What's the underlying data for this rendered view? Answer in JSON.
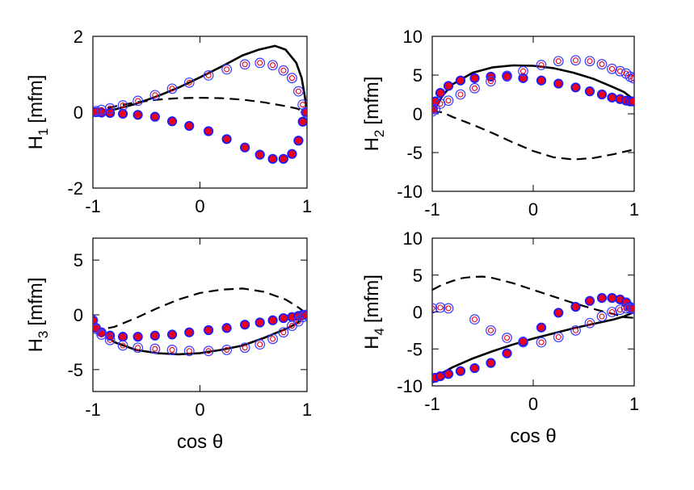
{
  "colors": {
    "filled_fill": "#e8001c",
    "filled_ring": "#1a1aff",
    "open_outer": "#3b3bff",
    "open_inner": "#e8001c",
    "line": "#000000"
  },
  "chart_data": [
    {
      "id": "h1",
      "type": "line",
      "ylabel_main": "H",
      "ylabel_sub": "1",
      "ylabel_unit": "[mfm]",
      "xlabel": "",
      "xlim": [
        -1,
        1
      ],
      "ylim": [
        -2,
        2
      ],
      "xticks": [
        "-1",
        "0",
        "1"
      ],
      "yticks": [
        "2",
        "0",
        "-2"
      ],
      "xtick_vals": [
        -1,
        0,
        1
      ],
      "ytick_vals": [
        2,
        0,
        -2
      ],
      "series": [
        {
          "name": "solid",
          "style": "solid",
          "x": [
            -1,
            -0.8,
            -0.6,
            -0.4,
            -0.2,
            0,
            0.2,
            0.4,
            0.55,
            0.7,
            0.8,
            0.9,
            0.95,
            0.98,
            1
          ],
          "y": [
            0,
            0.07,
            0.22,
            0.42,
            0.65,
            0.92,
            1.2,
            1.5,
            1.65,
            1.75,
            1.65,
            1.3,
            0.9,
            0.4,
            0
          ]
        },
        {
          "name": "dashed",
          "style": "dashed",
          "x": [
            -1,
            -0.8,
            -0.6,
            -0.4,
            -0.2,
            0,
            0.2,
            0.4,
            0.6,
            0.8,
            0.9,
            1
          ],
          "y": [
            0,
            0.15,
            0.26,
            0.33,
            0.37,
            0.38,
            0.37,
            0.33,
            0.26,
            0.16,
            0.1,
            0
          ]
        },
        {
          "name": "filled",
          "style": "filled",
          "x": [
            -1,
            -0.97,
            -0.92,
            -0.84,
            -0.72,
            -0.58,
            -0.42,
            -0.26,
            -0.1,
            0.08,
            0.25,
            0.42,
            0.56,
            0.68,
            0.78,
            0.86,
            0.92,
            0.96,
            0.99
          ],
          "y": [
            0,
            0,
            -0.01,
            -0.02,
            -0.04,
            -0.07,
            -0.12,
            -0.24,
            -0.36,
            -0.5,
            -0.71,
            -0.93,
            -1.12,
            -1.23,
            -1.23,
            -1.1,
            -0.75,
            -0.25,
            0
          ]
        },
        {
          "name": "open",
          "style": "open",
          "x": [
            -1,
            -0.97,
            -0.92,
            -0.84,
            -0.72,
            -0.58,
            -0.42,
            -0.26,
            -0.1,
            0.08,
            0.25,
            0.42,
            0.56,
            0.68,
            0.78,
            0.86,
            0.92,
            0.96,
            0.99
          ],
          "y": [
            0,
            0.03,
            0.06,
            0.1,
            0.18,
            0.3,
            0.45,
            0.62,
            0.78,
            0.97,
            1.13,
            1.26,
            1.3,
            1.24,
            1.1,
            0.9,
            0.55,
            0.2,
            0
          ]
        }
      ]
    },
    {
      "id": "h2",
      "type": "line",
      "ylabel_main": "H",
      "ylabel_sub": "2",
      "ylabel_unit": "[mfm]",
      "xlabel": "",
      "xlim": [
        -1,
        1
      ],
      "ylim": [
        -10,
        10
      ],
      "xticks": [
        "-1",
        "0",
        "1"
      ],
      "yticks": [
        "10",
        "5",
        "0",
        "-5",
        "-10"
      ],
      "xtick_vals": [
        -1,
        0,
        1
      ],
      "ytick_vals": [
        10,
        5,
        0,
        -5,
        -10
      ],
      "series": [
        {
          "name": "solid",
          "style": "solid",
          "x": [
            -1,
            -0.9,
            -0.8,
            -0.6,
            -0.4,
            -0.2,
            0,
            0.2,
            0.4,
            0.6,
            0.8,
            0.9,
            1
          ],
          "y": [
            0,
            2.3,
            3.8,
            5.3,
            6.0,
            6.25,
            6.2,
            5.9,
            5.3,
            4.5,
            3.4,
            2.8,
            1.8
          ]
        },
        {
          "name": "dashed",
          "style": "dashed",
          "x": [
            -1,
            -0.9,
            -0.8,
            -0.6,
            -0.4,
            -0.2,
            0,
            0.2,
            0.4,
            0.6,
            0.8,
            0.9,
            1
          ],
          "y": [
            0.3,
            0.2,
            -0.4,
            -1.4,
            -2.5,
            -3.7,
            -4.8,
            -5.6,
            -5.9,
            -5.7,
            -5.2,
            -4.9,
            -4.6
          ]
        },
        {
          "name": "filled",
          "style": "filled",
          "x": [
            -1,
            -0.97,
            -0.92,
            -0.84,
            -0.72,
            -0.58,
            -0.42,
            -0.26,
            -0.1,
            0.08,
            0.25,
            0.42,
            0.56,
            0.68,
            0.78,
            0.86,
            0.92,
            0.96,
            0.99
          ],
          "y": [
            0.6,
            1.6,
            2.7,
            3.6,
            4.3,
            4.6,
            4.8,
            4.8,
            4.6,
            4.3,
            3.9,
            3.4,
            2.9,
            2.5,
            2.1,
            1.9,
            1.7,
            1.6,
            1.6
          ]
        },
        {
          "name": "open",
          "style": "open",
          "x": [
            -1,
            -0.97,
            -0.92,
            -0.84,
            -0.72,
            -0.58,
            -0.42,
            -0.26,
            -0.1,
            0.08,
            0.25,
            0.42,
            0.56,
            0.68,
            0.78,
            0.86,
            0.92,
            0.96,
            0.99
          ],
          "y": [
            0.3,
            0.6,
            1.3,
            1.7,
            2.5,
            3.3,
            4.2,
            4.9,
            5.5,
            6.3,
            6.8,
            6.9,
            6.8,
            6.4,
            5.8,
            5.5,
            5.2,
            4.8,
            4.6
          ]
        }
      ]
    },
    {
      "id": "h3",
      "type": "line",
      "ylabel_main": "H",
      "ylabel_sub": "3",
      "ylabel_unit": "[mfm]",
      "xlabel": "cos θ",
      "xlim": [
        -1,
        1
      ],
      "ylim": [
        -7,
        7
      ],
      "xticks": [
        "-1",
        "0",
        "1"
      ],
      "yticks": [
        "5",
        "0",
        "-5"
      ],
      "xtick_vals": [
        -1,
        0,
        1
      ],
      "ytick_vals": [
        5,
        0,
        -5
      ],
      "series": [
        {
          "name": "solid",
          "style": "solid",
          "x": [
            -1,
            -0.9,
            -0.8,
            -0.6,
            -0.4,
            -0.2,
            0,
            0.2,
            0.4,
            0.6,
            0.8,
            0.9,
            1
          ],
          "y": [
            -0.5,
            -1.6,
            -2.5,
            -3.2,
            -3.5,
            -3.6,
            -3.5,
            -3.2,
            -2.8,
            -2.1,
            -1.3,
            -0.8,
            0
          ]
        },
        {
          "name": "dashed",
          "style": "dashed",
          "x": [
            -1,
            -0.9,
            -0.8,
            -0.6,
            -0.4,
            -0.2,
            0,
            0.2,
            0.4,
            0.6,
            0.8,
            0.9,
            1
          ],
          "y": [
            -1.2,
            -1.3,
            -1.1,
            -0.3,
            0.6,
            1.4,
            2.0,
            2.3,
            2.4,
            2.1,
            1.4,
            0.8,
            0.1
          ]
        },
        {
          "name": "filled",
          "style": "filled",
          "x": [
            -1,
            -0.97,
            -0.92,
            -0.84,
            -0.72,
            -0.58,
            -0.42,
            -0.26,
            -0.1,
            0.08,
            0.25,
            0.42,
            0.56,
            0.68,
            0.78,
            0.86,
            0.92,
            0.96,
            0.99
          ],
          "y": [
            -0.5,
            -1.2,
            -1.6,
            -1.9,
            -2.0,
            -2.0,
            -1.9,
            -1.8,
            -1.6,
            -1.4,
            -1.2,
            -0.9,
            -0.7,
            -0.5,
            -0.3,
            -0.2,
            -0.1,
            0,
            0
          ]
        },
        {
          "name": "open",
          "style": "open",
          "x": [
            -1,
            -0.97,
            -0.92,
            -0.84,
            -0.72,
            -0.58,
            -0.42,
            -0.26,
            -0.1,
            0.08,
            0.25,
            0.42,
            0.56,
            0.68,
            0.78,
            0.86,
            0.92,
            0.96,
            0.99
          ],
          "y": [
            -0.5,
            -1.3,
            -1.8,
            -2.3,
            -2.8,
            -3.0,
            -3.1,
            -3.2,
            -3.3,
            -3.3,
            -3.2,
            -3.0,
            -2.7,
            -2.2,
            -1.6,
            -1.0,
            -0.6,
            -0.2,
            0
          ]
        }
      ]
    },
    {
      "id": "h4",
      "type": "line",
      "ylabel_main": "H",
      "ylabel_sub": "4",
      "ylabel_unit": "[mfm]",
      "xlabel": "cos θ",
      "xlim": [
        -1,
        1
      ],
      "ylim": [
        -10,
        10
      ],
      "xticks": [
        "-1",
        "0",
        "1"
      ],
      "yticks": [
        "10",
        "5",
        "0",
        "-5",
        "-10"
      ],
      "xtick_vals": [
        -1,
        0,
        1
      ],
      "ytick_vals": [
        10,
        5,
        0,
        -5,
        -10
      ],
      "series": [
        {
          "name": "solid",
          "style": "solid",
          "x": [
            -1,
            -0.8,
            -0.6,
            -0.4,
            -0.2,
            0,
            0.2,
            0.4,
            0.6,
            0.8,
            0.9,
            0.95,
            1
          ],
          "y": [
            -9,
            -7.5,
            -6.3,
            -5.3,
            -4.4,
            -3.6,
            -2.9,
            -2.2,
            -1.6,
            -1.0,
            -0.6,
            -0.3,
            0
          ]
        },
        {
          "name": "dashed",
          "style": "dashed",
          "x": [
            -1,
            -0.9,
            -0.8,
            -0.7,
            -0.6,
            -0.5,
            -0.4,
            -0.2,
            0,
            0.2,
            0.4,
            0.6,
            0.8,
            0.9,
            1
          ],
          "y": [
            3.0,
            3.7,
            4.2,
            4.6,
            4.75,
            4.8,
            4.6,
            3.9,
            3.0,
            2.1,
            1.2,
            0.4,
            -0.3,
            -0.7,
            -0.8
          ]
        },
        {
          "name": "filled",
          "style": "filled",
          "x": [
            -1,
            -0.97,
            -0.92,
            -0.84,
            -0.72,
            -0.58,
            -0.42,
            -0.26,
            -0.1,
            0.08,
            0.25,
            0.42,
            0.56,
            0.68,
            0.78,
            0.86,
            0.92,
            0.96,
            0.99
          ],
          "y": [
            -9,
            -8.9,
            -8.7,
            -8.4,
            -8.0,
            -7.6,
            -6.9,
            -5.6,
            -4.0,
            -2.1,
            -0.1,
            0.7,
            1.5,
            1.9,
            1.9,
            1.7,
            1.3,
            0.7,
            0.4
          ]
        },
        {
          "name": "open",
          "style": "open",
          "x": [
            -1,
            -0.92,
            -0.84,
            -0.58,
            -0.42,
            -0.26,
            -0.1,
            0.08,
            0.25,
            0.42,
            0.56,
            0.68,
            0.78,
            0.86,
            0.92,
            0.96,
            0.99
          ],
          "y": [
            0.5,
            0.6,
            0.5,
            -1.0,
            -2.5,
            -3.5,
            -4.1,
            -4.1,
            -3.4,
            -2.5,
            -1.5,
            -0.6,
            0,
            0.3,
            0.5,
            0.5,
            0.5
          ]
        }
      ]
    }
  ]
}
